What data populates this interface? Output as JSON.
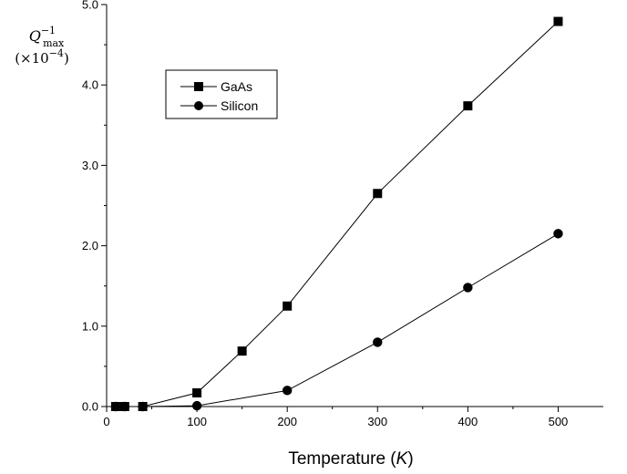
{
  "chart_data": {
    "type": "line",
    "title": "",
    "xlabel_prefix": "Temperature (",
    "xlabel_unit": "K",
    "xlabel_suffix": ")",
    "ylabel_line1_base": "Q",
    "ylabel_line1_sup": "−1",
    "ylabel_line1_sub": "max",
    "ylabel_line2_base": "(×10",
    "ylabel_line2_sup": "−4",
    "ylabel_line2_close": ")",
    "xlim": [
      0,
      550
    ],
    "ylim": [
      0,
      5
    ],
    "xticks": [
      0,
      100,
      200,
      300,
      400,
      500
    ],
    "xtick_labels": [
      "0",
      "100",
      "200",
      "300",
      "400",
      "500"
    ],
    "yticks": [
      0,
      1,
      2,
      3,
      4,
      5
    ],
    "ytick_labels": [
      "0.0",
      "1.0",
      "2.0",
      "3.0",
      "4.0",
      "5.0"
    ],
    "grid": false,
    "legend_position": "upper-left",
    "series": [
      {
        "name": "GaAs",
        "marker": "square",
        "color": "#000000",
        "x": [
          10,
          20,
          40,
          100,
          150,
          200,
          300,
          400,
          500
        ],
        "y": [
          0.0,
          0.0,
          0.0,
          0.17,
          0.69,
          1.25,
          2.65,
          3.74,
          4.79
        ]
      },
      {
        "name": "Silicon",
        "marker": "circle",
        "color": "#000000",
        "x": [
          10,
          20,
          40,
          100,
          200,
          300,
          400,
          500
        ],
        "y": [
          0.0,
          0.0,
          0.0,
          0.01,
          0.2,
          0.8,
          1.48,
          2.15
        ]
      }
    ]
  }
}
